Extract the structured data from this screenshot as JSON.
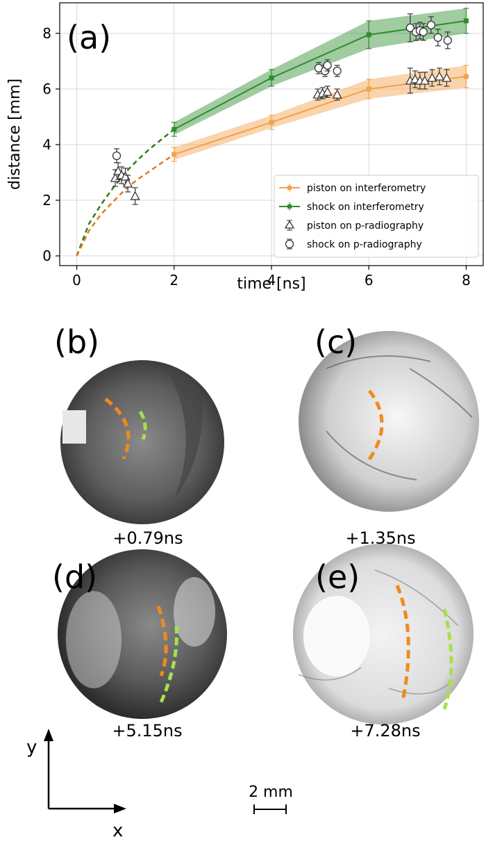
{
  "figure": {
    "panel_a_label": "(a)",
    "panel_labels": [
      "(b)",
      "(c)",
      "(d)",
      "(e)"
    ],
    "panel_times": [
      "+0.79ns",
      "+1.35ns",
      "+5.15ns",
      "+7.28ns"
    ],
    "axis_y_arrow_label": "y",
    "axis_x_arrow_label": "x",
    "scale_bar_label": "2 mm"
  },
  "chart_data": {
    "type": "line",
    "xlabel": "time [ns]",
    "ylabel": "distance [mm]",
    "xlim": [
      -0.35,
      8.35
    ],
    "ylim": [
      -0.35,
      9.1
    ],
    "xticks": [
      0,
      2,
      4,
      6,
      8
    ],
    "yticks": [
      0,
      2,
      4,
      6,
      8
    ],
    "grid": true,
    "legend_position": "lower-right",
    "colors": {
      "piston": "#f5a04a",
      "shock": "#2e8b2e",
      "orange_dash": "#e07b1a",
      "green_dash": "#2e7d1f"
    },
    "series": [
      {
        "name": "piston on interferometry",
        "marker": "square",
        "x": [
          2,
          4,
          6,
          8
        ],
        "y": [
          3.65,
          4.8,
          6.0,
          6.45
        ],
        "err": [
          0.25,
          0.25,
          0.35,
          0.4
        ],
        "band_lower": [
          3.45,
          4.6,
          5.65,
          6.05
        ],
        "band_upper": [
          3.9,
          5.05,
          6.35,
          6.85
        ]
      },
      {
        "name": "shock on interferometry",
        "marker": "square",
        "x": [
          2,
          4,
          6,
          8
        ],
        "y": [
          4.55,
          6.4,
          7.95,
          8.45
        ],
        "err": [
          0.25,
          0.3,
          0.5,
          0.45
        ],
        "band_lower": [
          4.35,
          6.1,
          7.45,
          8.0
        ],
        "band_upper": [
          4.8,
          6.7,
          8.45,
          8.9
        ]
      },
      {
        "name": "piston on p-radiography",
        "marker": "triangle",
        "x": [
          0.79,
          0.85,
          0.92,
          1.0,
          1.05,
          1.2,
          4.95,
          5.05,
          5.15,
          5.35,
          6.85,
          6.95,
          7.05,
          7.15,
          7.3,
          7.45,
          7.6
        ],
        "y": [
          2.8,
          3.05,
          2.9,
          2.85,
          2.6,
          2.15,
          5.8,
          5.85,
          5.9,
          5.8,
          6.3,
          6.35,
          6.3,
          6.3,
          6.4,
          6.45,
          6.4
        ],
        "err": [
          0.3,
          0.3,
          0.3,
          0.3,
          0.3,
          0.3,
          0.2,
          0.2,
          0.2,
          0.2,
          0.45,
          0.3,
          0.3,
          0.3,
          0.3,
          0.3,
          0.3
        ]
      },
      {
        "name": "shock on p-radiography",
        "marker": "circle",
        "x": [
          0.82,
          4.97,
          5.1,
          5.15,
          5.35,
          6.85,
          6.97,
          7.05,
          7.12,
          7.28,
          7.42,
          7.62
        ],
        "y": [
          3.6,
          6.75,
          6.65,
          6.85,
          6.65,
          8.2,
          8.05,
          8.1,
          8.05,
          8.3,
          7.85,
          7.75
        ],
        "err": [
          0.25,
          0.2,
          0.2,
          0.2,
          0.2,
          0.5,
          0.3,
          0.3,
          0.3,
          0.3,
          0.3,
          0.3
        ]
      }
    ],
    "extrapolation": [
      {
        "color_key": "shock",
        "x": [
          0,
          0.25,
          0.5,
          0.75,
          1.0,
          1.25,
          1.5,
          1.75,
          2.0
        ],
        "y": [
          0,
          1.15,
          1.85,
          2.45,
          3.0,
          3.45,
          3.85,
          4.2,
          4.55
        ]
      },
      {
        "color_key": "piston",
        "x": [
          0,
          0.25,
          0.5,
          0.75,
          1.0,
          1.25,
          1.5,
          1.75,
          2.0
        ],
        "y": [
          0,
          0.9,
          1.5,
          1.95,
          2.4,
          2.75,
          3.05,
          3.35,
          3.65
        ]
      }
    ]
  }
}
